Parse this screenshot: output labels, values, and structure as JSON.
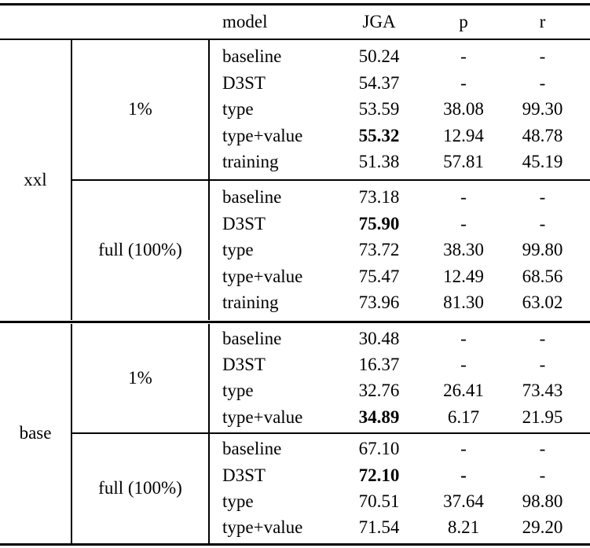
{
  "table": {
    "header": {
      "model": "model",
      "jga": "JGA",
      "p": "p",
      "r": "r"
    },
    "sections": [
      {
        "group": "xxl",
        "blocks": [
          {
            "pct": "1%",
            "rows": [
              {
                "model": "baseline",
                "jga": "50.24",
                "p": "-",
                "r": "-"
              },
              {
                "model": "D3ST",
                "jga": "54.37",
                "p": "-",
                "r": "-"
              },
              {
                "model": "type",
                "jga": "53.59",
                "p": "38.08",
                "r": "99.30"
              },
              {
                "model": "type+value",
                "jga": "55.32",
                "p": "12.94",
                "r": "48.78"
              },
              {
                "model": "training",
                "jga": "51.38",
                "p": "57.81",
                "r": "45.19"
              }
            ]
          },
          {
            "pct": "full (100%)",
            "rows": [
              {
                "model": "baseline",
                "jga": "73.18",
                "p": "-",
                "r": "-"
              },
              {
                "model": "D3ST",
                "jga": "75.90",
                "p": "-",
                "r": "-"
              },
              {
                "model": "type",
                "jga": "73.72",
                "p": "38.30",
                "r": "99.80"
              },
              {
                "model": "type+value",
                "jga": "75.47",
                "p": "12.49",
                "r": "68.56"
              },
              {
                "model": "training",
                "jga": "73.96",
                "p": "81.30",
                "r": "63.02"
              }
            ]
          }
        ]
      },
      {
        "group": "base",
        "blocks": [
          {
            "pct": "1%",
            "rows": [
              {
                "model": "baseline",
                "jga": "30.48",
                "p": "-",
                "r": "-"
              },
              {
                "model": "D3ST",
                "jga": "16.37",
                "p": "-",
                "r": "-"
              },
              {
                "model": "type",
                "jga": "32.76",
                "p": "26.41",
                "r": "73.43"
              },
              {
                "model": "type+value",
                "jga": "34.89",
                "p": "6.17",
                "r": "21.95"
              }
            ]
          },
          {
            "pct": "full (100%)",
            "rows": [
              {
                "model": "baseline",
                "jga": "67.10",
                "p": "-",
                "r": "-"
              },
              {
                "model": "D3ST",
                "jga": "72.10",
                "p": "-",
                "r": "-"
              },
              {
                "model": "type",
                "jga": "70.51",
                "p": "37.64",
                "r": "98.80"
              },
              {
                "model": "type+value",
                "jga": "71.54",
                "p": "8.21",
                "r": "29.20"
              }
            ]
          }
        ]
      }
    ]
  }
}
